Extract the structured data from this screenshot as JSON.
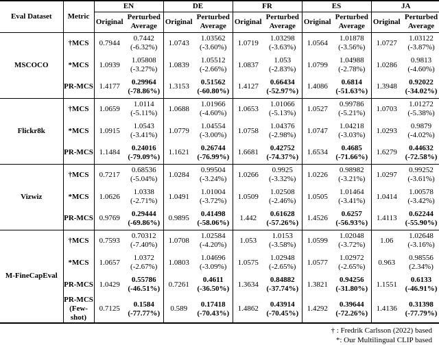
{
  "table": {
    "col_headers": {
      "dataset": "Eval Dataset",
      "metric": "Metric"
    },
    "languages": [
      "EN",
      "DE",
      "FR",
      "ES",
      "JA"
    ],
    "sub_original": "Original",
    "sub_perturbed": "Perturbed Average",
    "sections": [
      {
        "dataset": "MSCOCO",
        "rows": [
          {
            "metric": "†MCS",
            "bold": false,
            "cells": [
              {
                "orig": "0.7944",
                "pert": "0.7442",
                "pct": "(-6.32%)"
              },
              {
                "orig": "1.0743",
                "pert": "1.03562",
                "pct": "(-3.60%)"
              },
              {
                "orig": "1.0719",
                "pert": "1.03298",
                "pct": "(-3.63%)"
              },
              {
                "orig": "1.0564",
                "pert": "1.01878",
                "pct": "(-3.56%)"
              },
              {
                "orig": "1.0727",
                "pert": "1.03122",
                "pct": "(-3.87%)"
              }
            ]
          },
          {
            "metric": "*MCS",
            "bold": false,
            "cells": [
              {
                "orig": "1.0939",
                "pert": "1.05808",
                "pct": "(-3.27%)"
              },
              {
                "orig": "1.0839",
                "pert": "1.05512",
                "pct": "(-2.66%)"
              },
              {
                "orig": "1.0837",
                "pert": "1.053",
                "pct": "(-2.83%)"
              },
              {
                "orig": "1.0799",
                "pert": "1.04988",
                "pct": "(-2.78%)"
              },
              {
                "orig": "1.0286",
                "pert": "0.9813",
                "pct": "(-4.60%)"
              }
            ]
          },
          {
            "metric": "PR-MCS",
            "bold": true,
            "cells": [
              {
                "orig": "1.4177",
                "pert": "0.29964",
                "pct": "(-78.86%)"
              },
              {
                "orig": "1.3153",
                "pert": "0.51562",
                "pct": "(-60.80%)"
              },
              {
                "orig": "1.4127",
                "pert": "0.66434",
                "pct": "(-52.97%)"
              },
              {
                "orig": "1.4086",
                "pert": "0.6814",
                "pct": "(-51.63%)"
              },
              {
                "orig": "1.3948",
                "pert": "0.92022",
                "pct": "(-34.02%)"
              }
            ]
          }
        ]
      },
      {
        "dataset": "Flickr8k",
        "rows": [
          {
            "metric": "†MCS",
            "bold": false,
            "cells": [
              {
                "orig": "1.0659",
                "pert": "1.0114",
                "pct": "(-5.11%)"
              },
              {
                "orig": "1.0688",
                "pert": "1.01966",
                "pct": "(-4.60%)"
              },
              {
                "orig": "1.0653",
                "pert": "1.01066",
                "pct": "(-5.13%)"
              },
              {
                "orig": "1.0527",
                "pert": "0.99786",
                "pct": "(-5.21%)"
              },
              {
                "orig": "1.0703",
                "pert": "1.01272",
                "pct": "(-5.38%)"
              }
            ]
          },
          {
            "metric": "*MCS",
            "bold": false,
            "cells": [
              {
                "orig": "1.0915",
                "pert": "1.0543",
                "pct": "(-3.41%)"
              },
              {
                "orig": "1.0779",
                "pert": "1.04554",
                "pct": "(-3.00%)"
              },
              {
                "orig": "1.0758",
                "pert": "1.04376",
                "pct": "(-2.98%)"
              },
              {
                "orig": "1.0747",
                "pert": "1.04218",
                "pct": "(-3.03%)"
              },
              {
                "orig": "1.0293",
                "pert": "0.9879",
                "pct": "(-4.02%)"
              }
            ]
          },
          {
            "metric": "PR-MCS",
            "bold": true,
            "cells": [
              {
                "orig": "1.1484",
                "pert": "0.24016",
                "pct": "(-79.09%)"
              },
              {
                "orig": "1.1621",
                "pert": "0.26744",
                "pct": "(-76.99%)"
              },
              {
                "orig": "1.6681",
                "pert": "0.42752",
                "pct": "(-74.37%)"
              },
              {
                "orig": "1.6534",
                "pert": "0.4685",
                "pct": "(-71.66%)"
              },
              {
                "orig": "1.6279",
                "pert": "0.44632",
                "pct": "(-72.58%)"
              }
            ]
          }
        ]
      },
      {
        "dataset": "Vizwiz",
        "rows": [
          {
            "metric": "†MCS",
            "bold": false,
            "cells": [
              {
                "orig": "0.7217",
                "pert": "0.68536",
                "pct": "(-5.04%)"
              },
              {
                "orig": "1.0284",
                "pert": "0.99504",
                "pct": "(-3.24%)"
              },
              {
                "orig": "1.0266",
                "pert": "0.9925",
                "pct": "(-3.32%)"
              },
              {
                "orig": "1.0226",
                "pert": "0.98982",
                "pct": "(-3.21%)"
              },
              {
                "orig": "1.0297",
                "pert": "0.99252",
                "pct": "(-3.61%)"
              }
            ]
          },
          {
            "metric": "*MCS",
            "bold": false,
            "cells": [
              {
                "orig": "1.0626",
                "pert": "1.0338",
                "pct": "(-2.71%)"
              },
              {
                "orig": "1.0491",
                "pert": "1.01004",
                "pct": "(-3.72%)"
              },
              {
                "orig": "1.0509",
                "pert": "1.02508",
                "pct": "(-2.46%)"
              },
              {
                "orig": "1.0505",
                "pert": "1.01464",
                "pct": "(-3.41%)"
              },
              {
                "orig": "1.0414",
                "pert": "1.00578",
                "pct": "(-3.42%)"
              }
            ]
          },
          {
            "metric": "PR-MCS",
            "bold": true,
            "cells": [
              {
                "orig": "0.9769",
                "pert": "0.29444",
                "pct": "(-69.86%)"
              },
              {
                "orig": "0.9895",
                "pert": "0.41498",
                "pct": "(-58.06%)"
              },
              {
                "orig": "1.442",
                "pert": "0.61628",
                "pct": "(-57.26%)"
              },
              {
                "orig": "1.4526",
                "pert": "0.6257",
                "pct": "(-56.93%)"
              },
              {
                "orig": "1.4113",
                "pert": "0.62244",
                "pct": "(-55.90%)"
              }
            ]
          }
        ]
      },
      {
        "dataset": "M-FineCapEval",
        "rows": [
          {
            "metric": "†MCS",
            "bold": false,
            "cells": [
              {
                "orig": "0.7593",
                "pert": "0.70312",
                "pct": "(-7.40%)"
              },
              {
                "orig": "1.0708",
                "pert": "1.02584",
                "pct": "(-4.20%)"
              },
              {
                "orig": "1.053",
                "pert": "1.0153",
                "pct": "(-3.58%)"
              },
              {
                "orig": "1.0599",
                "pert": "1.02048",
                "pct": "(-3.72%)"
              },
              {
                "orig": "1.06",
                "pert": "1.02648",
                "pct": "(-3.16%)"
              }
            ]
          },
          {
            "metric": "*MCS",
            "bold": false,
            "cells": [
              {
                "orig": "1.0657",
                "pert": "1.0372",
                "pct": "(-2.67%)"
              },
              {
                "orig": "1.0803",
                "pert": "1.04696",
                "pct": "(-3.09%)"
              },
              {
                "orig": "1.0575",
                "pert": "1.02948",
                "pct": "(-2.65%)"
              },
              {
                "orig": "1.0577",
                "pert": "1.02972",
                "pct": "(-2.65%)"
              },
              {
                "orig": "0.963",
                "pert": "0.98556",
                "pct": "(2.34%)"
              }
            ]
          },
          {
            "metric": "PR-MCS",
            "bold": true,
            "cells": [
              {
                "orig": "1.0429",
                "pert": "0.55786",
                "pct": "(-46.51%)"
              },
              {
                "orig": "0.7261",
                "pert": "0.4611",
                "pct": "(-36.50%)"
              },
              {
                "orig": "1.3634",
                "pert": "0.84882",
                "pct": "(-37.74%)"
              },
              {
                "orig": "1.3821",
                "pert": "0.94256",
                "pct": "(-31.80%)"
              },
              {
                "orig": "1.1551",
                "pert": "0.6133",
                "pct": "(-46.91%)"
              }
            ]
          },
          {
            "metric": "PR-MCS\n(Few-shot)",
            "bold": true,
            "cells": [
              {
                "orig": "0.7125",
                "pert": "0.1584",
                "pct": "(-77.77%)"
              },
              {
                "orig": "0.589",
                "pert": "0.17418",
                "pct": "(-70.43%)"
              },
              {
                "orig": "1.4862",
                "pert": "0.43914",
                "pct": "(-70.45%)"
              },
              {
                "orig": "1.4292",
                "pert": "0.39644",
                "pct": "(-72.26%)"
              },
              {
                "orig": "1.4136",
                "pert": "0.31398",
                "pct": "(-77.79%)"
              }
            ]
          }
        ]
      }
    ]
  },
  "footnotes": [
    "† : Fredrik Carlsson (2022) based",
    "*: Our Multilingual CLIP based"
  ]
}
